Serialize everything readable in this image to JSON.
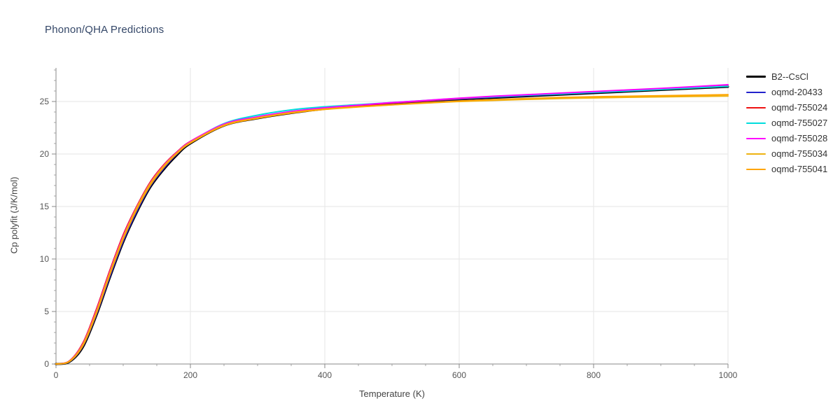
{
  "chart_data": {
    "type": "line",
    "title": "Phonon/QHA Predictions",
    "xlabel": "Temperature (K)",
    "ylabel": "Cp polyfit (J/K/mol)",
    "xlim": [
      0,
      1000
    ],
    "ylim": [
      0,
      28.2
    ],
    "xticks": [
      0,
      200,
      400,
      600,
      800,
      1000
    ],
    "yticks": [
      0,
      5,
      10,
      15,
      20,
      25
    ],
    "x_minor_step": 50,
    "y_minor_step": 1,
    "grid": true,
    "legend_position": "right",
    "grid_color": "#e6e6e6",
    "axis_color": "#888888",
    "x": [
      0,
      20,
      40,
      60,
      80,
      100,
      120,
      140,
      160,
      180,
      200,
      250,
      300,
      350,
      400,
      450,
      500,
      550,
      600,
      650,
      700,
      750,
      800,
      850,
      900,
      950,
      1000
    ],
    "series": [
      {
        "name": "B2--CsCl",
        "color": "#000000",
        "line_width": 3,
        "values": [
          0,
          0.2,
          1.6,
          4.6,
          8.2,
          11.6,
          14.4,
          16.8,
          18.5,
          19.9,
          21.0,
          22.7,
          23.4,
          23.9,
          24.3,
          24.55,
          24.8,
          25.0,
          25.2,
          25.35,
          25.5,
          25.65,
          25.8,
          25.95,
          26.1,
          26.25,
          26.4
        ]
      },
      {
        "name": "oqmd-20433",
        "color": "#2222cc",
        "line_width": 2,
        "values": [
          0,
          0.22,
          1.7,
          4.7,
          8.3,
          11.7,
          14.5,
          16.9,
          18.6,
          20.0,
          21.05,
          22.72,
          23.45,
          23.95,
          24.33,
          24.58,
          24.83,
          25.03,
          25.23,
          25.4,
          25.55,
          25.7,
          25.85,
          26.0,
          26.15,
          26.3,
          26.45
        ]
      },
      {
        "name": "oqmd-755024",
        "color": "#ee1111",
        "line_width": 2,
        "values": [
          0,
          0.3,
          2.0,
          5.2,
          8.9,
          12.3,
          15.0,
          17.3,
          18.95,
          20.2,
          21.2,
          22.8,
          23.5,
          24.0,
          24.35,
          24.6,
          24.85,
          25.05,
          25.27,
          25.45,
          25.6,
          25.75,
          25.9,
          26.05,
          26.2,
          26.38,
          26.55
        ]
      },
      {
        "name": "oqmd-755027",
        "color": "#00dddd",
        "line_width": 2,
        "values": [
          0,
          0.25,
          1.8,
          4.9,
          8.6,
          12.0,
          14.8,
          17.1,
          18.8,
          20.1,
          21.15,
          22.9,
          23.7,
          24.2,
          24.5,
          24.7,
          24.9,
          25.1,
          25.3,
          25.45,
          25.6,
          25.72,
          25.87,
          26.0,
          26.15,
          26.3,
          26.45
        ]
      },
      {
        "name": "oqmd-755028",
        "color": "#ff00ff",
        "line_width": 2,
        "values": [
          0,
          0.28,
          1.9,
          5.05,
          8.75,
          12.15,
          14.9,
          17.2,
          18.87,
          20.15,
          21.18,
          22.85,
          23.55,
          24.05,
          24.4,
          24.65,
          24.9,
          25.1,
          25.32,
          25.5,
          25.65,
          25.8,
          25.95,
          26.1,
          26.25,
          26.42,
          26.6
        ]
      },
      {
        "name": "oqmd-755034",
        "color": "#eeb211",
        "line_width": 2,
        "values": [
          0,
          0.26,
          1.85,
          4.95,
          8.65,
          12.05,
          14.85,
          17.15,
          18.82,
          20.1,
          21.1,
          22.75,
          23.45,
          23.95,
          24.28,
          24.5,
          24.68,
          24.85,
          25.0,
          25.1,
          25.2,
          25.28,
          25.34,
          25.4,
          25.44,
          25.48,
          25.52
        ]
      },
      {
        "name": "oqmd-755041",
        "color": "#ffa500",
        "line_width": 2,
        "values": [
          0,
          0.24,
          1.75,
          4.8,
          8.5,
          11.9,
          14.7,
          17.0,
          18.72,
          20.05,
          21.05,
          22.7,
          23.4,
          23.9,
          24.25,
          24.48,
          24.68,
          24.88,
          25.05,
          25.17,
          25.28,
          25.38,
          25.45,
          25.5,
          25.55,
          25.6,
          25.65
        ]
      }
    ]
  }
}
